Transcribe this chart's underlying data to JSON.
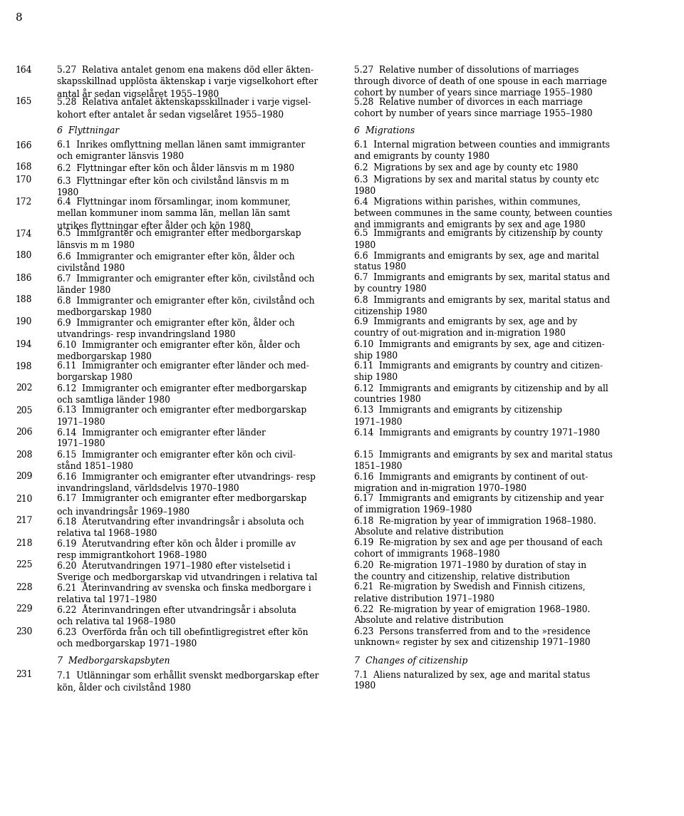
{
  "page_number": "8",
  "background_color": "#ffffff",
  "text_color": "#000000",
  "entries": [
    {
      "page": "164",
      "swedish": "5.27  Relativa antalet genom ena makens död eller äkten-\nskapsskillnad upplösta äktenskap i varje vigselkohort efter\nantal år sedan vigselåret 1955–1980",
      "english": "5.27  Relative number of dissolutions of marriages\nthrough divorce of death of one spouse in each marriage\ncohort by number of years since marriage 1955–1980",
      "italic": false
    },
    {
      "page": "165",
      "swedish": "5.28  Relativa antalet äktenskapsskillnader i varje vigsel-\nkohort efter antalet år sedan vigselåret 1955–1980",
      "english": "5.28  Relative number of divorces in each marriage\ncohort by number of years since marriage 1955–1980",
      "italic": false
    },
    {
      "page": "",
      "swedish": "6  Flyttningar",
      "english": "6  Migrations",
      "italic": true,
      "extra_before": true
    },
    {
      "page": "166",
      "swedish": "6.1  Inrikes omflyttning mellan länen samt immigranter\noch emigranter länsvis 1980",
      "english": "6.1  Internal migration between counties and immigrants\nand emigrants by county 1980",
      "italic": false
    },
    {
      "page": "168",
      "swedish": "6.2  Flyttningar efter kön och ålder länsvis m m 1980",
      "english": "6.2  Migrations by sex and age by county etc 1980",
      "italic": false
    },
    {
      "page": "170",
      "swedish": "6.3  Flyttningar efter kön och civilstånd länsvis m m\n1980",
      "english": "6.3  Migrations by sex and marital status by county etc\n1980",
      "italic": false
    },
    {
      "page": "172",
      "swedish": "6.4  Flyttningar inom församlingar, inom kommuner,\nmellan kommuner inom samma län, mellan län samt\nutrikes flyttningar efter ålder och kön 1980",
      "english": "6.4  Migrations within parishes, within communes,\nbetween communes in the same county, between counties\nand immigrants and emigrants by sex and age 1980",
      "italic": false
    },
    {
      "page": "174",
      "swedish": "6.5  Immigranter och emigranter efter medborgarskap\nlänsvis m m 1980",
      "english": "6.5  Immigrants and emigrants by citizenship by county\n1980",
      "italic": false
    },
    {
      "page": "180",
      "swedish": "6.6  Immigranter och emigranter efter kön, ålder och\ncivilstånd 1980",
      "english": "6.6  Immigrants and emigrants by sex, age and marital\nstatus 1980",
      "italic": false
    },
    {
      "page": "186",
      "swedish": "6.7  Immigranter och emigranter efter kön, civilstånd och\nländer 1980",
      "english": "6.7  Immigrants and emigrants by sex, marital status and\nby country 1980",
      "italic": false
    },
    {
      "page": "188",
      "swedish": "6.8  Immigranter och emigranter efter kön, civilstånd och\nmedborgarskap 1980",
      "english": "6.8  Immigrants and emigrants by sex, marital status and\ncitizenship 1980",
      "italic": false
    },
    {
      "page": "190",
      "swedish": "6.9  Immigranter och emigranter efter kön, ålder och\nutvandrings- resp invandringsland 1980",
      "english": "6.9  Immigrants and emigrants by sex, age and by\ncountry of out-migration and in-migration 1980",
      "italic": false
    },
    {
      "page": "194",
      "swedish": "6.10  Immigranter och emigranter efter kön, ålder och\nmedborgarskap 1980",
      "english": "6.10  Immigrants and emigrants by sex, age and citizen-\nship 1980",
      "italic": false
    },
    {
      "page": "198",
      "swedish": "6.11  Immigranter och emigranter efter länder och med-\nborgarskap 1980",
      "english": "6.11  Immigrants and emigrants by country and citizen-\nship 1980",
      "italic": false
    },
    {
      "page": "202",
      "swedish": "6.12  Immigranter och emigranter efter medborgarskap\noch samtliga länder 1980",
      "english": "6.12  Immigrants and emigrants by citizenship and by all\ncountries 1980",
      "italic": false
    },
    {
      "page": "205",
      "swedish": "6.13  Immigranter och emigranter efter medborgarskap\n1971–1980",
      "english": "6.13  Immigrants and emigrants by citizenship\n1971–1980",
      "italic": false
    },
    {
      "page": "206",
      "swedish": "6.14  Immigranter och emigranter efter länder\n1971–1980",
      "english": "6.14  Immigrants and emigrants by country 1971–1980",
      "italic": false
    },
    {
      "page": "208",
      "swedish": "6.15  Immigranter och emigranter efter kön och civil-\nstånd 1851–1980",
      "english": "6.15  Immigrants and emigrants by sex and marital status\n1851–1980",
      "italic": false
    },
    {
      "page": "209",
      "swedish": "6.16  Immigranter och emigranter efter utvandrings- resp\ninvandringsland, världsdelvis 1970–1980",
      "english": "6.16  Immigrants and emigrants by continent of out-\nmigration and in-migration 1970–1980",
      "italic": false
    },
    {
      "page": "210",
      "swedish": "6.17  Immigranter och emigranter efter medborgarskap\noch invandringsår 1969–1980",
      "english": "6.17  Immigrants and emigrants by citizenship and year\nof immigration 1969–1980",
      "italic": false
    },
    {
      "page": "217",
      "swedish": "6.18  Återutvandring efter invandringsår i absoluta och\nrelativa tal 1968–1980",
      "english": "6.18  Re-migration by year of immigration 1968–1980.\nAbsolute and relative distribution",
      "italic": false
    },
    {
      "page": "218",
      "swedish": "6.19  Återutvandring efter kön och ålder i promille av\nresp immigrantkohort 1968–1980",
      "english": "6.19  Re-migration by sex and age per thousand of each\ncohort of immigrants 1968–1980",
      "italic": false
    },
    {
      "page": "225",
      "swedish": "6.20  Återutvandringen 1971–1980 efter vistelsetid i\nSverige och medborgarskap vid utvandringen i relativa tal",
      "english": "6.20  Re-migration 1971–1980 by duration of stay in\nthe country and citizenship, relative distribution",
      "italic": false
    },
    {
      "page": "228",
      "swedish": "6.21  Återinvandring av svenska och finska medborgare i\nrelativa tal 1971–1980",
      "english": "6.21  Re-migration by Swedish and Finnish citizens,\nrelative distribution 1971–1980",
      "italic": false
    },
    {
      "page": "229",
      "swedish": "6.22  Återinvandringen efter utvandringsår i absoluta\noch relativa tal 1968–1980",
      "english": "6.22  Re-migration by year of emigration 1968–1980.\nAbsolute and relative distribution",
      "italic": false
    },
    {
      "page": "230",
      "swedish": "6.23  Overförda från och till obefintligregistret efter kön\noch medborgarskap 1971–1980",
      "english": "6.23  Persons transferred from and to the »residence\nunknown« register by sex and citizenship 1971–1980",
      "italic": false
    },
    {
      "page": "",
      "swedish": "7  Medborgarskapsbyten",
      "english": "7  Changes of citizenship",
      "italic": true,
      "extra_before": true
    },
    {
      "page": "231",
      "swedish": "7.1  Utlänningar som erhållit svenskt medborgarskap efter\nkön, ålder och civilstånd 1980",
      "english": "7.1  Aliens naturalized by sex, age and marital status\n1980",
      "italic": false
    }
  ]
}
